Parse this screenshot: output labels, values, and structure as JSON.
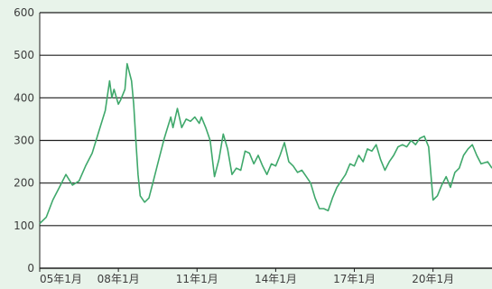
{
  "chart_data": {
    "type": "line",
    "title": "",
    "xlabel": "",
    "ylabel": "",
    "ylim": [
      0,
      600
    ],
    "y_ticks": [
      0,
      100,
      200,
      300,
      400,
      500,
      600
    ],
    "x_ticks": [
      {
        "t": 0,
        "label": "05年1月"
      },
      {
        "t": 36,
        "label": "08年1月"
      },
      {
        "t": 72,
        "label": "11年1月"
      },
      {
        "t": 108,
        "label": "14年1月"
      },
      {
        "t": 144,
        "label": "17年1月"
      },
      {
        "t": 180,
        "label": "20年1月"
      }
    ],
    "x_range": [
      0,
      207
    ],
    "grid": true,
    "colors": {
      "line": "#3fa86b",
      "grid": "#1f1f1f",
      "background": "#e8f3ea",
      "plot": "#ffffff"
    },
    "series": [
      {
        "name": "",
        "points": [
          [
            0,
            105
          ],
          [
            3,
            120
          ],
          [
            6,
            160
          ],
          [
            9,
            190
          ],
          [
            12,
            220
          ],
          [
            15,
            195
          ],
          [
            18,
            205
          ],
          [
            21,
            240
          ],
          [
            24,
            270
          ],
          [
            27,
            320
          ],
          [
            30,
            370
          ],
          [
            32,
            440
          ],
          [
            33,
            400
          ],
          [
            34,
            420
          ],
          [
            36,
            385
          ],
          [
            37,
            395
          ],
          [
            39,
            420
          ],
          [
            40,
            480
          ],
          [
            42,
            440
          ],
          [
            43,
            385
          ],
          [
            44,
            300
          ],
          [
            45,
            220
          ],
          [
            46,
            170
          ],
          [
            48,
            155
          ],
          [
            50,
            165
          ],
          [
            52,
            205
          ],
          [
            54,
            245
          ],
          [
            57,
            305
          ],
          [
            60,
            355
          ],
          [
            61,
            330
          ],
          [
            63,
            375
          ],
          [
            65,
            330
          ],
          [
            67,
            350
          ],
          [
            69,
            345
          ],
          [
            71,
            355
          ],
          [
            73,
            340
          ],
          [
            74,
            355
          ],
          [
            76,
            330
          ],
          [
            78,
            300
          ],
          [
            80,
            215
          ],
          [
            82,
            255
          ],
          [
            84,
            315
          ],
          [
            86,
            280
          ],
          [
            88,
            220
          ],
          [
            90,
            235
          ],
          [
            92,
            230
          ],
          [
            94,
            275
          ],
          [
            96,
            270
          ],
          [
            98,
            245
          ],
          [
            100,
            265
          ],
          [
            102,
            240
          ],
          [
            104,
            220
          ],
          [
            106,
            245
          ],
          [
            108,
            240
          ],
          [
            110,
            265
          ],
          [
            112,
            295
          ],
          [
            114,
            250
          ],
          [
            116,
            240
          ],
          [
            118,
            225
          ],
          [
            120,
            230
          ],
          [
            122,
            215
          ],
          [
            124,
            200
          ],
          [
            126,
            165
          ],
          [
            128,
            140
          ],
          [
            130,
            140
          ],
          [
            132,
            135
          ],
          [
            134,
            165
          ],
          [
            136,
            190
          ],
          [
            138,
            205
          ],
          [
            140,
            220
          ],
          [
            142,
            245
          ],
          [
            144,
            240
          ],
          [
            146,
            265
          ],
          [
            148,
            250
          ],
          [
            150,
            280
          ],
          [
            152,
            275
          ],
          [
            154,
            290
          ],
          [
            156,
            255
          ],
          [
            158,
            230
          ],
          [
            160,
            250
          ],
          [
            162,
            265
          ],
          [
            164,
            285
          ],
          [
            166,
            290
          ],
          [
            168,
            285
          ],
          [
            170,
            300
          ],
          [
            172,
            290
          ],
          [
            174,
            305
          ],
          [
            176,
            310
          ],
          [
            178,
            285
          ],
          [
            180,
            160
          ],
          [
            182,
            170
          ],
          [
            184,
            195
          ],
          [
            186,
            215
          ],
          [
            188,
            190
          ],
          [
            190,
            225
          ],
          [
            192,
            235
          ],
          [
            194,
            265
          ],
          [
            196,
            280
          ],
          [
            198,
            290
          ],
          [
            200,
            265
          ],
          [
            202,
            245
          ],
          [
            205,
            250
          ],
          [
            207,
            235
          ]
        ]
      }
    ]
  }
}
